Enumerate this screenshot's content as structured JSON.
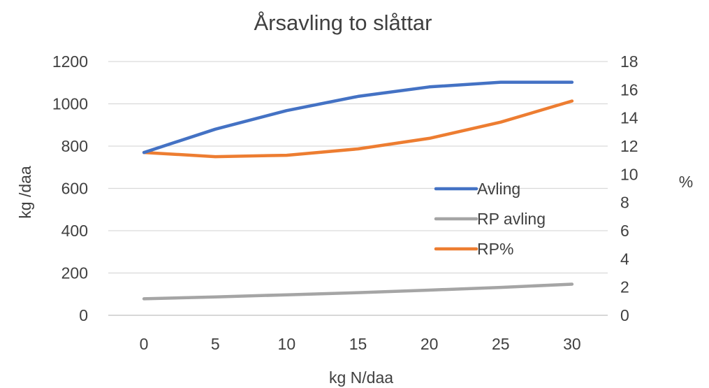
{
  "chart_data": {
    "type": "line",
    "title": "Årsavling to slåttar",
    "xlabel": "kg N/daa",
    "ylabel": "kg /daa",
    "y2label": "%",
    "x": [
      0,
      5,
      10,
      15,
      20,
      25,
      30
    ],
    "x_ticks": [
      "0",
      "5",
      "10",
      "15",
      "20",
      "25",
      "30"
    ],
    "ylim": [
      0,
      1200
    ],
    "y_ticks": [
      "0",
      "200",
      "400",
      "600",
      "800",
      "1000",
      "1200"
    ],
    "y2lim": [
      0,
      18
    ],
    "y2_ticks": [
      "0",
      "2",
      "4",
      "6",
      "8",
      "10",
      "12",
      "14",
      "16",
      "18"
    ],
    "grid": true,
    "legend_position": "center-right",
    "series": [
      {
        "name": "Avling",
        "axis": "left",
        "color": "#4472C4",
        "values": [
          770,
          880,
          968,
          1035,
          1080,
          1102,
          1102
        ]
      },
      {
        "name": "RP avling",
        "axis": "left",
        "color": "#A5A5A5",
        "values": [
          78,
          87,
          97,
          107,
          119,
          132,
          147
        ]
      },
      {
        "name": "RP%",
        "axis": "right",
        "color": "#ED7D31",
        "values": [
          11.55,
          11.25,
          11.35,
          11.8,
          12.55,
          13.7,
          15.2
        ]
      }
    ]
  }
}
